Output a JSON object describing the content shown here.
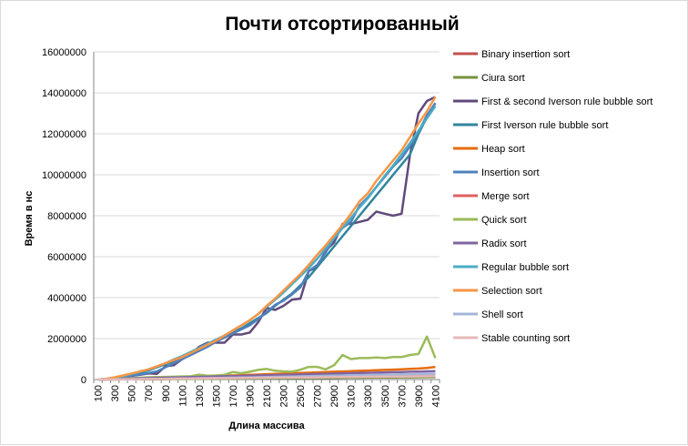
{
  "chart_data": {
    "type": "line",
    "title": "Почти отсортированный",
    "xlabel": "Длина массива",
    "ylabel": "Время в нс",
    "ylim": [
      0,
      16000000
    ],
    "y_ticks": [
      "0",
      "2000000",
      "4000000",
      "6000000",
      "8000000",
      "10000000",
      "12000000",
      "14000000",
      "16000000"
    ],
    "x": [
      100,
      200,
      300,
      400,
      500,
      600,
      700,
      800,
      900,
      1000,
      1100,
      1200,
      1300,
      1400,
      1500,
      1600,
      1700,
      1800,
      1900,
      2000,
      2100,
      2200,
      2300,
      2400,
      2500,
      2600,
      2700,
      2800,
      2900,
      3000,
      3100,
      3200,
      3300,
      3400,
      3500,
      3600,
      3700,
      3800,
      3900,
      4000,
      4100
    ],
    "x_tick_labels": [
      "100",
      "300",
      "500",
      "700",
      "900",
      "1100",
      "1300",
      "1500",
      "1700",
      "1900",
      "2100",
      "2300",
      "2500",
      "2700",
      "2900",
      "3100",
      "3300",
      "3500",
      "3700",
      "3900",
      "4100"
    ],
    "grid": "horizontal",
    "legend_position": "right",
    "series": [
      {
        "name": "Binary insertion sort",
        "color": "#c0504d",
        "values": [
          2000,
          4000,
          6000,
          9000,
          12000,
          15000,
          18000,
          22000,
          26000,
          30000,
          34000,
          38000,
          42000,
          47000,
          52000,
          57000,
          62000,
          68000,
          74000,
          80000,
          86000,
          92000,
          98000,
          104000,
          110000,
          117000,
          124000,
          131000,
          138000,
          145000,
          152000,
          160000,
          168000,
          176000,
          184000,
          192000,
          200000,
          208000,
          216000,
          224000,
          232000
        ]
      },
      {
        "name": "Ciura sort",
        "color": "#77933c",
        "values": [
          1000,
          3000,
          5000,
          7000,
          9000,
          12000,
          15000,
          18000,
          21000,
          24000,
          27000,
          30000,
          33000,
          36000,
          39000,
          42000,
          45000,
          48000,
          51000,
          54000,
          57000,
          60000,
          63000,
          66000,
          69000,
          72000,
          75000,
          78000,
          81000,
          84000,
          87000,
          90000,
          93000,
          96000,
          99000,
          102000,
          105000,
          108000,
          111000,
          114000,
          117000
        ]
      },
      {
        "name": "First & second Iverson rule bubble sort",
        "color": "#604a7b",
        "values": [
          0,
          20000,
          70000,
          120000,
          180000,
          230000,
          300000,
          280000,
          650000,
          700000,
          1000000,
          1250000,
          1600000,
          1800000,
          1800000,
          1800000,
          2200000,
          2200000,
          2300000,
          2800000,
          3500000,
          3400000,
          3600000,
          3900000,
          3950000,
          5300000,
          5500000,
          6300000,
          6700000,
          7600000,
          7600000,
          7700000,
          7800000,
          8200000,
          8100000,
          8000000,
          8100000,
          11000000,
          13000000,
          13600000,
          13800000
        ]
      },
      {
        "name": "First Iverson rule bubble sort",
        "color": "#31859c",
        "values": [
          0,
          30000,
          90000,
          170000,
          250000,
          350000,
          450000,
          600000,
          750000,
          900000,
          1100000,
          1300000,
          1500000,
          1700000,
          1900000,
          2100000,
          2300000,
          2500000,
          2750000,
          3000000,
          3250000,
          3600000,
          3900000,
          4200000,
          4600000,
          5000000,
          5500000,
          6000000,
          6500000,
          7000000,
          7500000,
          8000000,
          8500000,
          9000000,
          9500000,
          10000000,
          10500000,
          11000000,
          12000000,
          12800000,
          13500000
        ]
      },
      {
        "name": "Heap sort",
        "color": "#e46c0a",
        "values": [
          5000,
          12000,
          20000,
          30000,
          40000,
          50000,
          62000,
          75000,
          88000,
          100000,
          112000,
          125000,
          140000,
          155000,
          170000,
          185000,
          200000,
          215000,
          230000,
          245000,
          260000,
          275000,
          290000,
          305000,
          320000,
          335000,
          350000,
          365000,
          380000,
          395000,
          410000,
          425000,
          440000,
          455000,
          470000,
          485000,
          500000,
          520000,
          540000,
          570000,
          620000
        ]
      },
      {
        "name": "Insertion sort",
        "color": "#4f81bd",
        "values": [
          0,
          20000,
          70000,
          130000,
          200000,
          250000,
          320000,
          400000,
          600000,
          800000,
          1000000,
          1200000,
          1400000,
          1600000,
          1850000,
          2050000,
          2250000,
          2450000,
          2650000,
          2950000,
          3300000,
          3650000,
          3850000,
          4150000,
          4500000,
          5300000,
          5600000,
          6200000,
          6900000,
          7400000,
          7700000,
          8500000,
          8900000,
          9400000,
          9900000,
          10400000,
          10800000,
          11400000,
          12100000,
          12900000,
          13500000
        ]
      },
      {
        "name": "Merge sort",
        "color": "#e06060",
        "values": [
          3000,
          6000,
          10000,
          15000,
          20000,
          25000,
          30000,
          36000,
          42000,
          48000,
          54000,
          60000,
          66000,
          72000,
          78000,
          84000,
          90000,
          96000,
          102000,
          108000,
          114000,
          120000,
          126000,
          132000,
          138000,
          144000,
          150000,
          156000,
          162000,
          168000,
          174000,
          180000,
          186000,
          192000,
          198000,
          204000,
          210000,
          216000,
          222000,
          228000,
          234000
        ]
      },
      {
        "name": "Quick sort",
        "color": "#9bbb59",
        "values": [
          5000,
          15000,
          30000,
          50000,
          70000,
          90000,
          110000,
          120000,
          130000,
          140000,
          150000,
          160000,
          240000,
          180000,
          200000,
          230000,
          370000,
          310000,
          380000,
          470000,
          520000,
          430000,
          400000,
          380000,
          480000,
          620000,
          620000,
          500000,
          700000,
          1200000,
          1000000,
          1050000,
          1050000,
          1080000,
          1050000,
          1100000,
          1100000,
          1200000,
          1250000,
          2100000,
          1050000
        ]
      },
      {
        "name": "Radix sort",
        "color": "#8064a2",
        "values": [
          10000,
          20000,
          30000,
          40000,
          50000,
          60000,
          70000,
          80000,
          90000,
          100000,
          110000,
          120000,
          130000,
          140000,
          150000,
          160000,
          170000,
          180000,
          190000,
          200000,
          210000,
          220000,
          230000,
          240000,
          250000,
          260000,
          270000,
          280000,
          290000,
          300000,
          310000,
          320000,
          330000,
          340000,
          350000,
          360000,
          370000,
          380000,
          390000,
          400000,
          410000
        ]
      },
      {
        "name": "Regular bubble sort",
        "color": "#4bacc6",
        "values": [
          0,
          30000,
          90000,
          170000,
          270000,
          380000,
          500000,
          640000,
          800000,
          980000,
          1150000,
          1350000,
          1550000,
          1750000,
          1950000,
          2150000,
          2400000,
          2650000,
          2900000,
          3200000,
          3550000,
          3900000,
          4250000,
          4650000,
          5050000,
          5450000,
          5900000,
          6400000,
          6900000,
          7400000,
          7900000,
          8400000,
          8850000,
          9400000,
          9950000,
          10450000,
          11000000,
          11550000,
          12150000,
          12750000,
          13350000
        ]
      },
      {
        "name": "Selection sort",
        "color": "#f79646",
        "values": [
          0,
          40000,
          110000,
          200000,
          300000,
          400000,
          500000,
          650000,
          800000,
          950000,
          1100000,
          1300000,
          1500000,
          1700000,
          1900000,
          2150000,
          2400000,
          2650000,
          2900000,
          3200000,
          3600000,
          3950000,
          4350000,
          4750000,
          5150000,
          5600000,
          6100000,
          6550000,
          7050000,
          7550000,
          8100000,
          8700000,
          9100000,
          9700000,
          10200000,
          10700000,
          11200000,
          11850000,
          12500000,
          13100000,
          13800000
        ]
      },
      {
        "name": "Shell sort",
        "color": "#a5b6d9",
        "values": [
          2000,
          5000,
          9000,
          13000,
          18000,
          23000,
          28000,
          34000,
          40000,
          46000,
          52000,
          58000,
          65000,
          72000,
          79000,
          86000,
          93000,
          100000,
          108000,
          116000,
          124000,
          132000,
          140000,
          148000,
          156000,
          164000,
          172000,
          180000,
          188000,
          196000,
          204000,
          212000,
          220000,
          228000,
          236000,
          244000,
          252000,
          260000,
          268000,
          276000,
          284000
        ]
      },
      {
        "name": "Stable counting sort",
        "color": "#e6b9b8",
        "values": [
          4000,
          8000,
          12000,
          16000,
          20000,
          24000,
          28000,
          32000,
          36000,
          40000,
          44000,
          48000,
          52000,
          56000,
          60000,
          64000,
          68000,
          72000,
          76000,
          80000,
          84000,
          88000,
          92000,
          96000,
          100000,
          104000,
          108000,
          112000,
          116000,
          120000,
          124000,
          128000,
          132000,
          136000,
          140000,
          144000,
          148000,
          152000,
          156000,
          160000,
          164000
        ]
      }
    ]
  }
}
